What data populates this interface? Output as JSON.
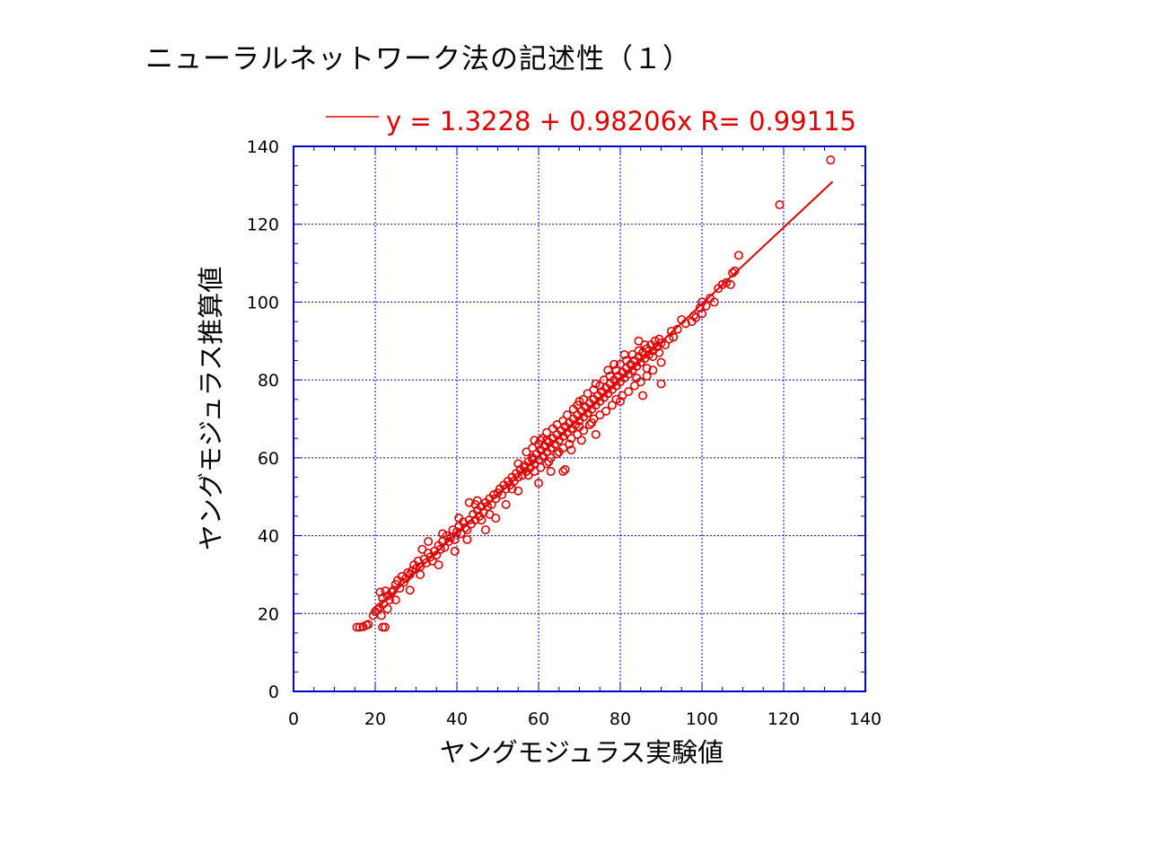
{
  "slide_title": "ニューラルネットワーク法の記述性（１）",
  "colors": {
    "series": "#e00000",
    "grid": "#0000cc",
    "frame": "#0000cc",
    "text": "#000000"
  },
  "chart_data": {
    "type": "scatter",
    "xlabel": "ヤングモジュラス実験値",
    "ylabel": "ヤングモジュラス推算値",
    "xlim": [
      0,
      140
    ],
    "ylim": [
      0,
      140
    ],
    "x_ticks": [
      "0",
      "20",
      "40",
      "60",
      "80",
      "100",
      "120",
      "140"
    ],
    "y_ticks": [
      "0",
      "20",
      "40",
      "60",
      "80",
      "100",
      "120",
      "140"
    ],
    "grid": true,
    "legend": {
      "placement": "top",
      "text": "y = 1.3228 + 0.98206x R= 0.99115"
    },
    "fit": {
      "intercept": 1.3228,
      "slope": 0.98206,
      "r": 0.99115,
      "x_range": [
        21,
        132
      ]
    },
    "series": [
      {
        "marker": "open-circle",
        "points": [
          [
            15.5,
            16.5
          ],
          [
            16.2,
            16.5
          ],
          [
            17.0,
            16.6
          ],
          [
            17.8,
            17.0
          ],
          [
            18.3,
            17.2
          ],
          [
            19.5,
            19.5
          ],
          [
            20.0,
            20.5
          ],
          [
            20.5,
            21.0
          ],
          [
            21.0,
            21.5
          ],
          [
            21.5,
            19.5
          ],
          [
            21.8,
            16.5
          ],
          [
            22.4,
            16.5
          ],
          [
            21.2,
            25.5
          ],
          [
            21.8,
            24.0
          ],
          [
            22.5,
            25.8
          ],
          [
            23.0,
            24.5
          ],
          [
            23.5,
            23.5
          ],
          [
            24.0,
            25.5
          ],
          [
            22.0,
            22.5
          ],
          [
            23.0,
            21.2
          ],
          [
            24.5,
            26.0
          ],
          [
            25.0,
            27.5
          ],
          [
            25.5,
            28.5
          ],
          [
            26.0,
            26.5
          ],
          [
            26.5,
            29.5
          ],
          [
            27.0,
            28.0
          ],
          [
            27.5,
            29.0
          ],
          [
            28.0,
            30.5
          ],
          [
            28.5,
            30.0
          ],
          [
            29.0,
            31.0
          ],
          [
            29.5,
            32.5
          ],
          [
            30.0,
            31.5
          ],
          [
            30.5,
            33.5
          ],
          [
            31.0,
            32.0
          ],
          [
            31.5,
            36.5
          ],
          [
            32.0,
            34.0
          ],
          [
            32.5,
            33.0
          ],
          [
            33.0,
            35.5
          ],
          [
            33.5,
            34.5
          ],
          [
            34.0,
            33.5
          ],
          [
            34.5,
            36.0
          ],
          [
            35.0,
            35.0
          ],
          [
            35.5,
            37.5
          ],
          [
            36.0,
            36.5
          ],
          [
            36.5,
            38.5
          ],
          [
            37.0,
            37.0
          ],
          [
            37.5,
            40.0
          ],
          [
            38.0,
            38.5
          ],
          [
            38.5,
            39.5
          ],
          [
            39.0,
            41.5
          ],
          [
            39.5,
            39.0
          ],
          [
            40.0,
            41.0
          ],
          [
            40.5,
            42.5
          ],
          [
            41.0,
            40.5
          ],
          [
            41.5,
            43.5
          ],
          [
            42.0,
            42.0
          ],
          [
            42.5,
            41.5
          ],
          [
            43.0,
            44.0
          ],
          [
            43.5,
            43.0
          ],
          [
            44.0,
            45.5
          ],
          [
            44.5,
            44.0
          ],
          [
            45.0,
            46.5
          ],
          [
            45.5,
            45.0
          ],
          [
            46.0,
            47.5
          ],
          [
            46.5,
            46.0
          ],
          [
            47.0,
            48.5
          ],
          [
            47.5,
            47.5
          ],
          [
            48.0,
            49.5
          ],
          [
            48.5,
            48.0
          ],
          [
            49.0,
            50.5
          ],
          [
            49.5,
            49.5
          ],
          [
            50.0,
            51.0
          ],
          [
            43.0,
            48.5
          ],
          [
            45.0,
            49.0
          ],
          [
            46.0,
            44.0
          ],
          [
            48.0,
            45.5
          ],
          [
            52.0,
            48.0
          ],
          [
            53.5,
            52.0
          ],
          [
            50.5,
            52.0
          ],
          [
            51.0,
            50.5
          ],
          [
            51.5,
            53.0
          ],
          [
            52.0,
            52.0
          ],
          [
            52.5,
            54.0
          ],
          [
            53.0,
            53.0
          ],
          [
            53.5,
            55.0
          ],
          [
            54.0,
            54.0
          ],
          [
            54.5,
            56.0
          ],
          [
            55.0,
            55.0
          ],
          [
            55.5,
            57.0
          ],
          [
            56.0,
            55.5
          ],
          [
            56.5,
            58.0
          ],
          [
            57.0,
            56.5
          ],
          [
            57.5,
            59.0
          ],
          [
            58.0,
            57.5
          ],
          [
            58.5,
            60.0
          ],
          [
            59.0,
            58.5
          ],
          [
            59.5,
            61.0
          ],
          [
            60.0,
            59.5
          ],
          [
            60.5,
            62.0
          ],
          [
            61.0,
            60.5
          ],
          [
            61.5,
            63.0
          ],
          [
            62.0,
            61.5
          ],
          [
            62.5,
            64.0
          ],
          [
            63.0,
            62.5
          ],
          [
            63.5,
            65.0
          ],
          [
            64.0,
            63.5
          ],
          [
            64.5,
            66.0
          ],
          [
            65.0,
            64.5
          ],
          [
            65.5,
            67.0
          ],
          [
            66.0,
            65.5
          ],
          [
            66.5,
            68.0
          ],
          [
            67.0,
            66.5
          ],
          [
            67.5,
            69.0
          ],
          [
            68.0,
            67.5
          ],
          [
            68.5,
            70.0
          ],
          [
            69.0,
            68.5
          ],
          [
            69.5,
            71.0
          ],
          [
            70.0,
            69.5
          ],
          [
            70.5,
            72.0
          ],
          [
            71.0,
            70.5
          ],
          [
            71.5,
            73.0
          ],
          [
            72.0,
            71.5
          ],
          [
            72.5,
            74.0
          ],
          [
            73.0,
            72.5
          ],
          [
            73.5,
            75.0
          ],
          [
            74.0,
            73.5
          ],
          [
            74.5,
            76.0
          ],
          [
            75.0,
            74.5
          ],
          [
            75.5,
            77.0
          ],
          [
            76.0,
            75.5
          ],
          [
            76.5,
            78.0
          ],
          [
            77.0,
            76.5
          ],
          [
            77.5,
            79.0
          ],
          [
            78.0,
            77.5
          ],
          [
            78.5,
            80.0
          ],
          [
            79.0,
            78.5
          ],
          [
            79.5,
            81.0
          ],
          [
            80.0,
            79.5
          ],
          [
            80.5,
            82.0
          ],
          [
            81.0,
            80.5
          ],
          [
            81.5,
            83.0
          ],
          [
            82.0,
            81.5
          ],
          [
            82.5,
            84.0
          ],
          [
            83.0,
            82.5
          ],
          [
            83.5,
            85.0
          ],
          [
            84.0,
            83.5
          ],
          [
            84.5,
            86.0
          ],
          [
            85.0,
            84.5
          ],
          [
            85.5,
            87.0
          ],
          [
            86.0,
            85.5
          ],
          [
            86.5,
            88.0
          ],
          [
            87.0,
            86.5
          ],
          [
            87.5,
            89.0
          ],
          [
            88.0,
            87.5
          ],
          [
            88.5,
            90.0
          ],
          [
            89.0,
            88.5
          ],
          [
            89.5,
            90.5
          ],
          [
            90.0,
            89.5
          ],
          [
            55.0,
            58.5
          ],
          [
            56.5,
            57.5
          ],
          [
            57.0,
            61.5
          ],
          [
            58.5,
            62.5
          ],
          [
            59.0,
            64.5
          ],
          [
            60.0,
            63.5
          ],
          [
            61.0,
            65.0
          ],
          [
            62.0,
            66.5
          ],
          [
            63.5,
            67.5
          ],
          [
            64.5,
            68.5
          ],
          [
            66.0,
            69.5
          ],
          [
            67.0,
            71.0
          ],
          [
            68.5,
            72.5
          ],
          [
            69.5,
            73.5
          ],
          [
            71.0,
            75.0
          ],
          [
            72.0,
            76.5
          ],
          [
            73.5,
            77.5
          ],
          [
            75.0,
            78.5
          ],
          [
            76.0,
            80.0
          ],
          [
            77.5,
            81.0
          ],
          [
            79.0,
            82.5
          ],
          [
            80.0,
            84.0
          ],
          [
            81.5,
            85.0
          ],
          [
            83.0,
            86.5
          ],
          [
            84.5,
            87.5
          ],
          [
            86.0,
            89.0
          ],
          [
            57.5,
            55.5
          ],
          [
            59.0,
            56.5
          ],
          [
            60.5,
            57.5
          ],
          [
            62.0,
            58.5
          ],
          [
            63.0,
            60.0
          ],
          [
            64.5,
            61.0
          ],
          [
            66.0,
            62.5
          ],
          [
            67.5,
            63.5
          ],
          [
            68.0,
            65.0
          ],
          [
            69.5,
            66.0
          ],
          [
            71.0,
            67.0
          ],
          [
            72.5,
            68.5
          ],
          [
            73.5,
            70.0
          ],
          [
            75.0,
            71.0
          ],
          [
            76.5,
            72.0
          ],
          [
            78.0,
            73.5
          ],
          [
            79.0,
            75.0
          ],
          [
            80.5,
            76.0
          ],
          [
            82.0,
            77.0
          ],
          [
            83.5,
            78.5
          ],
          [
            85.0,
            79.5
          ],
          [
            86.5,
            81.0
          ],
          [
            88.0,
            82.5
          ],
          [
            90.0,
            84.5
          ],
          [
            62.5,
            59.0
          ],
          [
            63.0,
            56.5
          ],
          [
            66.5,
            57.0
          ],
          [
            66.0,
            56.5
          ],
          [
            60.5,
            64.5
          ],
          [
            62.0,
            64.5
          ],
          [
            58.5,
            59.5
          ],
          [
            70.0,
            68.0
          ],
          [
            73.0,
            69.0
          ],
          [
            86.5,
            83.0
          ],
          [
            84.0,
            80.5
          ],
          [
            88.0,
            86.0
          ],
          [
            89.5,
            87.0
          ],
          [
            91.0,
            89.0
          ],
          [
            92.0,
            90.5
          ],
          [
            93.0,
            91.0
          ],
          [
            94.0,
            93.0
          ],
          [
            96.0,
            94.5
          ],
          [
            97.5,
            95.0
          ],
          [
            98.5,
            96.0
          ],
          [
            100.0,
            97.0
          ],
          [
            102.0,
            101.0
          ],
          [
            104.0,
            103.5
          ],
          [
            106.0,
            105.0
          ],
          [
            107.0,
            104.5
          ],
          [
            107.5,
            107.5
          ],
          [
            108.0,
            108.0
          ],
          [
            109.0,
            112.0
          ],
          [
            119.0,
            125.0
          ],
          [
            131.5,
            136.5
          ],
          [
            100.0,
            100.0
          ],
          [
            101.0,
            99.0
          ],
          [
            103.0,
            100.0
          ],
          [
            105.0,
            104.5
          ],
          [
            98.0,
            96.5
          ],
          [
            99.5,
            98.5
          ],
          [
            70.0,
            74.5
          ],
          [
            74.0,
            79.0
          ],
          [
            77.0,
            82.5
          ],
          [
            78.5,
            84.0
          ],
          [
            81.0,
            86.5
          ],
          [
            84.5,
            90.0
          ],
          [
            92.5,
            92.5
          ],
          [
            95.0,
            95.5
          ],
          [
            65.0,
            61.5
          ],
          [
            68.0,
            62.0
          ],
          [
            70.5,
            64.5
          ],
          [
            74.0,
            66.0
          ],
          [
            80.0,
            74.5
          ],
          [
            85.5,
            76.0
          ],
          [
            90.0,
            79.0
          ],
          [
            55.0,
            51.5
          ],
          [
            60.0,
            53.5
          ],
          [
            49.5,
            44.5
          ],
          [
            47.0,
            41.5
          ],
          [
            42.5,
            39.0
          ],
          [
            39.5,
            36.0
          ],
          [
            35.5,
            32.5
          ],
          [
            31.0,
            30.0
          ],
          [
            28.5,
            26.0
          ],
          [
            25.0,
            23.5
          ],
          [
            33.0,
            38.5
          ],
          [
            36.5,
            40.5
          ],
          [
            40.5,
            44.5
          ],
          [
            44.5,
            48.0
          ]
        ]
      }
    ]
  }
}
